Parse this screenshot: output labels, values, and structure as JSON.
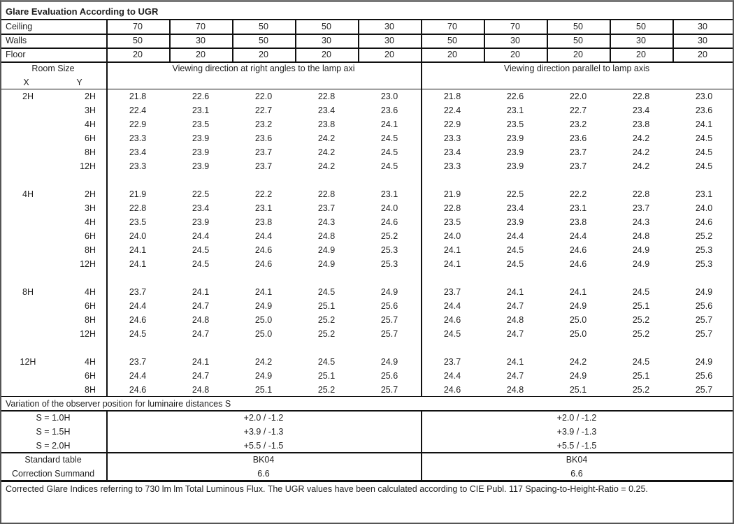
{
  "title": "Glare Evaluation According to UGR",
  "reflectance": [
    {
      "label": "Ceiling",
      "values": [
        "70",
        "70",
        "50",
        "50",
        "30",
        "70",
        "70",
        "50",
        "50",
        "30"
      ]
    },
    {
      "label": "Walls",
      "values": [
        "50",
        "30",
        "50",
        "30",
        "30",
        "50",
        "30",
        "50",
        "30",
        "30"
      ]
    },
    {
      "label": "Floor",
      "values": [
        "20",
        "20",
        "20",
        "20",
        "20",
        "20",
        "20",
        "20",
        "20",
        "20"
      ]
    }
  ],
  "header": {
    "room_size": "Room Size",
    "x": "X",
    "y": "Y",
    "dir_right_angles": "Viewing direction at right angles to the lamp axi",
    "dir_parallel": "Viewing direction parallel to lamp axis"
  },
  "groups": [
    {
      "x": "2H",
      "rows": [
        {
          "y": "2H",
          "values": [
            "21.8",
            "22.6",
            "22.0",
            "22.8",
            "23.0",
            "21.8",
            "22.6",
            "22.0",
            "22.8",
            "23.0"
          ]
        },
        {
          "y": "3H",
          "values": [
            "22.4",
            "23.1",
            "22.7",
            "23.4",
            "23.6",
            "22.4",
            "23.1",
            "22.7",
            "23.4",
            "23.6"
          ]
        },
        {
          "y": "4H",
          "values": [
            "22.9",
            "23.5",
            "23.2",
            "23.8",
            "24.1",
            "22.9",
            "23.5",
            "23.2",
            "23.8",
            "24.1"
          ]
        },
        {
          "y": "6H",
          "values": [
            "23.3",
            "23.9",
            "23.6",
            "24.2",
            "24.5",
            "23.3",
            "23.9",
            "23.6",
            "24.2",
            "24.5"
          ]
        },
        {
          "y": "8H",
          "values": [
            "23.4",
            "23.9",
            "23.7",
            "24.2",
            "24.5",
            "23.4",
            "23.9",
            "23.7",
            "24.2",
            "24.5"
          ]
        },
        {
          "y": "12H",
          "values": [
            "23.3",
            "23.9",
            "23.7",
            "24.2",
            "24.5",
            "23.3",
            "23.9",
            "23.7",
            "24.2",
            "24.5"
          ]
        }
      ]
    },
    {
      "x": "4H",
      "rows": [
        {
          "y": "2H",
          "values": [
            "21.9",
            "22.5",
            "22.2",
            "22.8",
            "23.1",
            "21.9",
            "22.5",
            "22.2",
            "22.8",
            "23.1"
          ]
        },
        {
          "y": "3H",
          "values": [
            "22.8",
            "23.4",
            "23.1",
            "23.7",
            "24.0",
            "22.8",
            "23.4",
            "23.1",
            "23.7",
            "24.0"
          ]
        },
        {
          "y": "4H",
          "values": [
            "23.5",
            "23.9",
            "23.8",
            "24.3",
            "24.6",
            "23.5",
            "23.9",
            "23.8",
            "24.3",
            "24.6"
          ]
        },
        {
          "y": "6H",
          "values": [
            "24.0",
            "24.4",
            "24.4",
            "24.8",
            "25.2",
            "24.0",
            "24.4",
            "24.4",
            "24.8",
            "25.2"
          ]
        },
        {
          "y": "8H",
          "values": [
            "24.1",
            "24.5",
            "24.6",
            "24.9",
            "25.3",
            "24.1",
            "24.5",
            "24.6",
            "24.9",
            "25.3"
          ]
        },
        {
          "y": "12H",
          "values": [
            "24.1",
            "24.5",
            "24.6",
            "24.9",
            "25.3",
            "24.1",
            "24.5",
            "24.6",
            "24.9",
            "25.3"
          ]
        }
      ]
    },
    {
      "x": "8H",
      "rows": [
        {
          "y": "4H",
          "values": [
            "23.7",
            "24.1",
            "24.1",
            "24.5",
            "24.9",
            "23.7",
            "24.1",
            "24.1",
            "24.5",
            "24.9"
          ]
        },
        {
          "y": "6H",
          "values": [
            "24.4",
            "24.7",
            "24.9",
            "25.1",
            "25.6",
            "24.4",
            "24.7",
            "24.9",
            "25.1",
            "25.6"
          ]
        },
        {
          "y": "8H",
          "values": [
            "24.6",
            "24.8",
            "25.0",
            "25.2",
            "25.7",
            "24.6",
            "24.8",
            "25.0",
            "25.2",
            "25.7"
          ]
        },
        {
          "y": "12H",
          "values": [
            "24.5",
            "24.7",
            "25.0",
            "25.2",
            "25.7",
            "24.5",
            "24.7",
            "25.0",
            "25.2",
            "25.7"
          ]
        }
      ]
    },
    {
      "x": "12H",
      "rows": [
        {
          "y": "4H",
          "values": [
            "23.7",
            "24.1",
            "24.2",
            "24.5",
            "24.9",
            "23.7",
            "24.1",
            "24.2",
            "24.5",
            "24.9"
          ]
        },
        {
          "y": "6H",
          "values": [
            "24.4",
            "24.7",
            "24.9",
            "25.1",
            "25.6",
            "24.4",
            "24.7",
            "24.9",
            "25.1",
            "25.6"
          ]
        },
        {
          "y": "8H",
          "values": [
            "24.6",
            "24.8",
            "25.1",
            "25.2",
            "25.7",
            "24.6",
            "24.8",
            "25.1",
            "25.2",
            "25.7"
          ]
        }
      ]
    }
  ],
  "variation": {
    "title": "Variation of the observer position for luminaire distances S",
    "rows": [
      {
        "label": "S = 1.0H",
        "left": "+2.0 / -1.2",
        "right": "+2.0 / -1.2"
      },
      {
        "label": "S = 1.5H",
        "left": "+3.9 / -1.3",
        "right": "+3.9 / -1.3"
      },
      {
        "label": "S = 2.0H",
        "left": "+5.5 / -1.5",
        "right": "+5.5 / -1.5"
      }
    ]
  },
  "standard": [
    {
      "label": "Standard table",
      "left": "BK04",
      "right": "BK04"
    },
    {
      "label": "Correction Summand",
      "left": "6.6",
      "right": "6.6"
    }
  ],
  "footer": "Corrected Glare Indices referring to 730 lm lm Total Luminous Flux. The UGR values have been calculated according to CIE Publ. 117    Spacing-to-Height-Ratio = 0.25."
}
